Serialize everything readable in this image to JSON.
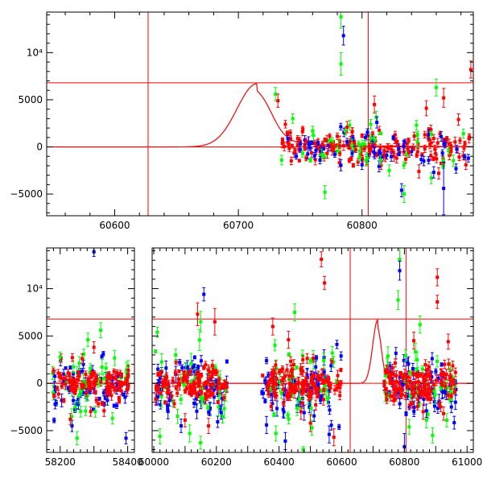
{
  "colors": {
    "red": "#ff0000",
    "green": "#00ff00",
    "blue": "#0000ff",
    "frame": "#000000"
  },
  "chart_data": [
    {
      "type": "scatter",
      "panel": "top",
      "title": "",
      "xlabel": "",
      "ylabel": "",
      "xlim": [
        60545,
        60890
      ],
      "ylim": [
        -7300,
        14300
      ],
      "x_ticks": [
        {
          "value": 60600,
          "label": "60600"
        },
        {
          "value": 60700,
          "label": "60700"
        },
        {
          "value": 60800,
          "label": "60800"
        }
      ],
      "y_ticks": [
        {
          "value": -5000,
          "label": "−5000"
        },
        {
          "value": 0,
          "label": "0"
        },
        {
          "value": 5000,
          "label": "5000"
        },
        {
          "value": 10000,
          "label": "10⁴"
        }
      ],
      "reference_lines": {
        "horizontal": [
          0,
          6800
        ],
        "vertical": [
          60627,
          60805
        ]
      },
      "model_curve": {
        "peak_x": 60715,
        "peak_y": 6700,
        "color": "red"
      },
      "series": [
        {
          "color": "red",
          "points": [
            {
              "x": 60732,
              "y": 4900,
              "e": 700
            },
            {
              "x": 60738,
              "y": 2400,
              "e": 400
            },
            {
              "x": 60742,
              "y": 1500,
              "e": 300
            },
            {
              "x": 60748,
              "y": 900,
              "e": 300
            },
            {
              "x": 60755,
              "y": 600,
              "e": 300
            },
            {
              "x": 60762,
              "y": 400,
              "e": 300
            },
            {
              "x": 60768,
              "y": 300,
              "e": 300
            },
            {
              "x": 60775,
              "y": 200,
              "e": 300
            },
            {
              "x": 60782,
              "y": 100,
              "e": 300
            },
            {
              "x": 60788,
              "y": 2100,
              "e": 600
            },
            {
              "x": 60795,
              "y": -300,
              "e": 300
            },
            {
              "x": 60802,
              "y": -200,
              "e": 300
            },
            {
              "x": 60810,
              "y": 4500,
              "e": 900
            },
            {
              "x": 60818,
              "y": -400,
              "e": 300
            },
            {
              "x": 60828,
              "y": -1200,
              "e": 500
            },
            {
              "x": 60838,
              "y": -600,
              "e": 500
            },
            {
              "x": 60846,
              "y": -2600,
              "e": 700
            },
            {
              "x": 60852,
              "y": 4100,
              "e": 800
            },
            {
              "x": 60858,
              "y": 900,
              "e": 400
            },
            {
              "x": 60862,
              "y": -2800,
              "e": 600
            },
            {
              "x": 60866,
              "y": 5200,
              "e": 1000
            },
            {
              "x": 60872,
              "y": -500,
              "e": 400
            },
            {
              "x": 60878,
              "y": 2900,
              "e": 600
            },
            {
              "x": 60884,
              "y": -1900,
              "e": 500
            },
            {
              "x": 60888,
              "y": 8200,
              "e": 900
            }
          ]
        },
        {
          "color": "green",
          "points": [
            {
              "x": 60730,
              "y": 5600,
              "e": 700
            },
            {
              "x": 60735,
              "y": -1400,
              "e": 500
            },
            {
              "x": 60744,
              "y": 3000,
              "e": 500
            },
            {
              "x": 60752,
              "y": -700,
              "e": 400
            },
            {
              "x": 60760,
              "y": 1700,
              "e": 500
            },
            {
              "x": 60770,
              "y": -4800,
              "e": 700
            },
            {
              "x": 60776,
              "y": 600,
              "e": 400
            },
            {
              "x": 60783,
              "y": 8800,
              "e": 1200
            },
            {
              "x": 60783,
              "y": 13800,
              "e": 1200
            },
            {
              "x": 60790,
              "y": 2300,
              "e": 500
            },
            {
              "x": 60798,
              "y": -1100,
              "e": 400
            },
            {
              "x": 60807,
              "y": 2400,
              "e": 500
            },
            {
              "x": 60815,
              "y": -1400,
              "e": 500
            },
            {
              "x": 60822,
              "y": -2500,
              "e": 600
            },
            {
              "x": 60834,
              "y": -5000,
              "e": 900
            },
            {
              "x": 60844,
              "y": 2300,
              "e": 500
            },
            {
              "x": 60856,
              "y": -3300,
              "e": 600
            },
            {
              "x": 60860,
              "y": 6300,
              "e": 900
            },
            {
              "x": 60870,
              "y": -400,
              "e": 400
            },
            {
              "x": 60882,
              "y": 1400,
              "e": 500
            }
          ]
        },
        {
          "color": "blue",
          "points": [
            {
              "x": 60740,
              "y": 900,
              "e": 300
            },
            {
              "x": 60750,
              "y": 300,
              "e": 300
            },
            {
              "x": 60758,
              "y": -100,
              "e": 300
            },
            {
              "x": 60766,
              "y": -1400,
              "e": 400
            },
            {
              "x": 60778,
              "y": -800,
              "e": 300
            },
            {
              "x": 60785,
              "y": 11800,
              "e": 1000
            },
            {
              "x": 60792,
              "y": -700,
              "e": 300
            },
            {
              "x": 60800,
              "y": -1900,
              "e": 500
            },
            {
              "x": 60812,
              "y": 2600,
              "e": 600
            },
            {
              "x": 60820,
              "y": -900,
              "e": 400
            },
            {
              "x": 60832,
              "y": -4600,
              "e": 700
            },
            {
              "x": 60840,
              "y": -500,
              "e": 400
            },
            {
              "x": 60850,
              "y": -1500,
              "e": 500
            },
            {
              "x": 60858,
              "y": -2700,
              "e": 600
            },
            {
              "x": 60864,
              "y": 1100,
              "e": 500
            },
            {
              "x": 60866,
              "y": -4400,
              "e": 2800
            },
            {
              "x": 60876,
              "y": -2300,
              "e": 500
            },
            {
              "x": 60886,
              "y": -1200,
              "e": 400
            }
          ]
        }
      ],
      "dense_bands": [
        {
          "color": "red",
          "x_range": [
            60735,
            60888
          ],
          "y_center": 0,
          "y_spread": 900,
          "count": 150
        },
        {
          "color": "blue",
          "x_range": [
            60745,
            60888
          ],
          "y_center": -200,
          "y_spread": 1000,
          "count": 45
        },
        {
          "color": "green",
          "x_range": [
            60745,
            60888
          ],
          "y_center": 0,
          "y_spread": 1200,
          "count": 30
        }
      ]
    },
    {
      "type": "scatter",
      "panel": "bottom",
      "title": "",
      "xlabel": "",
      "ylabel": "",
      "broken_axis": true,
      "segments": [
        {
          "xlim": [
            58160,
            58420
          ]
        },
        {
          "xlim": [
            59995,
            61020
          ]
        }
      ],
      "ylim": [
        -7300,
        14300
      ],
      "x_ticks": [
        {
          "value": 58200,
          "label": "58200",
          "segment": 0
        },
        {
          "value": 58400,
          "label": "58400",
          "segment": 0
        },
        {
          "value": 60000,
          "label": "60000",
          "segment": 1
        },
        {
          "value": 60200,
          "label": "60200",
          "segment": 1
        },
        {
          "value": 60400,
          "label": "60400",
          "segment": 1
        },
        {
          "value": 60600,
          "label": "60600",
          "segment": 1
        },
        {
          "value": 60800,
          "label": "60800",
          "segment": 1
        },
        {
          "value": 61000,
          "label": "61000",
          "segment": 1
        }
      ],
      "y_ticks": [
        {
          "value": -5000,
          "label": "−5000"
        },
        {
          "value": 0,
          "label": "0"
        },
        {
          "value": 5000,
          "label": "5000"
        },
        {
          "value": 10000,
          "label": "10⁴"
        }
      ],
      "reference_lines": {
        "horizontal": [
          0,
          6800
        ],
        "vertical": [
          60627,
          60805
        ]
      },
      "model_curve": {
        "peak_x": 60715,
        "peak_y": 6700,
        "color": "red"
      },
      "series": [
        {
          "color": "red",
          "points": [
            {
              "x": 58230,
              "y": -3800,
              "e": 600
            },
            {
              "x": 58265,
              "y": 2600,
              "e": 500
            },
            {
              "x": 58300,
              "y": 3800,
              "e": 600
            },
            {
              "x": 58330,
              "y": -2900,
              "e": 600
            },
            {
              "x": 60100,
              "y": -3900,
              "e": 700
            },
            {
              "x": 60140,
              "y": 7300,
              "e": 1200
            },
            {
              "x": 60175,
              "y": -4500,
              "e": 800
            },
            {
              "x": 60195,
              "y": 6500,
              "e": 1400
            },
            {
              "x": 60380,
              "y": 6000,
              "e": 900
            },
            {
              "x": 60430,
              "y": 4600,
              "e": 900
            },
            {
              "x": 60470,
              "y": -3000,
              "e": 800
            },
            {
              "x": 60500,
              "y": -4200,
              "e": 900
            },
            {
              "x": 60535,
              "y": 13100,
              "e": 800
            },
            {
              "x": 60545,
              "y": 10600,
              "e": 700
            },
            {
              "x": 60575,
              "y": -5700,
              "e": 900
            },
            {
              "x": 60830,
              "y": 4500,
              "e": 900
            },
            {
              "x": 60860,
              "y": -3000,
              "e": 800
            },
            {
              "x": 60905,
              "y": 11200,
              "e": 900
            },
            {
              "x": 60905,
              "y": 8600,
              "e": 700
            },
            {
              "x": 60925,
              "y": -3200,
              "e": 700
            },
            {
              "x": 60940,
              "y": 4400,
              "e": 800
            }
          ]
        },
        {
          "color": "green",
          "points": [
            {
              "x": 58200,
              "y": 2800,
              "e": 500
            },
            {
              "x": 58245,
              "y": -2500,
              "e": 500
            },
            {
              "x": 58250,
              "y": -5800,
              "e": 700
            },
            {
              "x": 58282,
              "y": 4600,
              "e": 700
            },
            {
              "x": 58320,
              "y": 5600,
              "e": 800
            },
            {
              "x": 58355,
              "y": -3700,
              "e": 600
            },
            {
              "x": 60020,
              "y": -5600,
              "e": 800
            },
            {
              "x": 60070,
              "y": 3000,
              "e": 600
            },
            {
              "x": 60115,
              "y": -5300,
              "e": 900
            },
            {
              "x": 60150,
              "y": 6500,
              "e": 1100
            },
            {
              "x": 60220,
              "y": -3500,
              "e": 700
            },
            {
              "x": 60390,
              "y": -5300,
              "e": 800
            },
            {
              "x": 60450,
              "y": 7500,
              "e": 900
            },
            {
              "x": 60505,
              "y": -4700,
              "e": 800
            },
            {
              "x": 60570,
              "y": 3200,
              "e": 700
            },
            {
              "x": 60780,
              "y": 8800,
              "e": 1000
            },
            {
              "x": 60785,
              "y": 13100,
              "e": 1200
            },
            {
              "x": 60815,
              "y": -4600,
              "e": 800
            },
            {
              "x": 60850,
              "y": 6200,
              "e": 900
            },
            {
              "x": 60890,
              "y": -5500,
              "e": 800
            },
            {
              "x": 60935,
              "y": -3900,
              "e": 700
            }
          ]
        },
        {
          "color": "blue",
          "points": [
            {
              "x": 58185,
              "y": -2200,
              "e": 500
            },
            {
              "x": 58235,
              "y": -4500,
              "e": 600
            },
            {
              "x": 58300,
              "y": 13900,
              "e": 500
            },
            {
              "x": 58340,
              "y": -1800,
              "e": 500
            },
            {
              "x": 58395,
              "y": -5800,
              "e": 600
            },
            {
              "x": 60050,
              "y": -1800,
              "e": 600
            },
            {
              "x": 60160,
              "y": 9400,
              "e": 700
            },
            {
              "x": 60215,
              "y": -3100,
              "e": 700
            },
            {
              "x": 60360,
              "y": -4400,
              "e": 900
            },
            {
              "x": 60420,
              "y": -6100,
              "e": 900
            },
            {
              "x": 60480,
              "y": -3100,
              "e": 800
            },
            {
              "x": 60560,
              "y": -5400,
              "e": 900
            },
            {
              "x": 60785,
              "y": 11900,
              "e": 1000
            },
            {
              "x": 60800,
              "y": -6700,
              "e": 1400
            },
            {
              "x": 60870,
              "y": -2900,
              "e": 700
            },
            {
              "x": 60950,
              "y": -2500,
              "e": 600
            }
          ]
        }
      ],
      "dense_bands": [
        {
          "color": "blue",
          "x_range": [
            58175,
            58405
          ],
          "y_center": -400,
          "y_spread": 1200,
          "count": 70
        },
        {
          "color": "blue",
          "x_range": [
            60005,
            60235
          ],
          "y_center": -400,
          "y_spread": 1600,
          "count": 60
        },
        {
          "color": "blue",
          "x_range": [
            60345,
            60600
          ],
          "y_center": -400,
          "y_spread": 1600,
          "count": 70
        },
        {
          "color": "blue",
          "x_range": [
            60735,
            60965
          ],
          "y_center": -400,
          "y_spread": 1500,
          "count": 65
        },
        {
          "color": "green",
          "x_range": [
            58175,
            58405
          ],
          "y_center": 0,
          "y_spread": 1600,
          "count": 35
        },
        {
          "color": "green",
          "x_range": [
            60005,
            60235
          ],
          "y_center": 0,
          "y_spread": 2200,
          "count": 35
        },
        {
          "color": "green",
          "x_range": [
            60345,
            60600
          ],
          "y_center": 0,
          "y_spread": 2200,
          "count": 35
        },
        {
          "color": "green",
          "x_range": [
            60735,
            60965
          ],
          "y_center": 0,
          "y_spread": 2000,
          "count": 35
        },
        {
          "color": "red",
          "x_range": [
            58175,
            58405
          ],
          "y_center": 0,
          "y_spread": 800,
          "count": 110
        },
        {
          "color": "red",
          "x_range": [
            60005,
            60235
          ],
          "y_center": 0,
          "y_spread": 1000,
          "count": 110
        },
        {
          "color": "red",
          "x_range": [
            60345,
            60600
          ],
          "y_center": 0,
          "y_spread": 1100,
          "count": 120
        },
        {
          "color": "red",
          "x_range": [
            60735,
            60965
          ],
          "y_center": 0,
          "y_spread": 1000,
          "count": 120
        }
      ]
    }
  ]
}
